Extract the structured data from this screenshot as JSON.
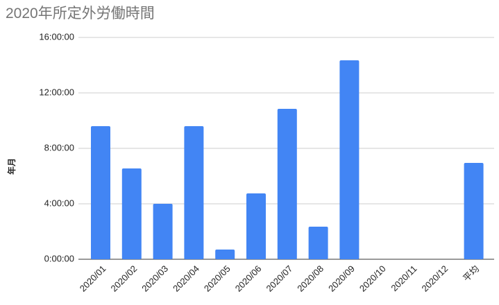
{
  "chart_data": {
    "type": "bar",
    "title": "2020年所定外労働時間",
    "y_label": "年月",
    "categories": [
      "2020/01",
      "2020/02",
      "2020/03",
      "2020/04",
      "2020/05",
      "2020/06",
      "2020/07",
      "2020/08",
      "2020/09",
      "2020/10",
      "2020/11",
      "2020/12",
      "平均"
    ],
    "values": [
      9.6,
      6.55,
      4.0,
      9.6,
      0.7,
      4.75,
      10.85,
      2.35,
      14.35,
      0,
      0,
      0,
      6.95
    ],
    "color": "#4285f4",
    "ylim": [
      0,
      16
    ],
    "yticks": [
      {
        "value": 0,
        "label": "0:00:00"
      },
      {
        "value": 4,
        "label": "4:00:00"
      },
      {
        "value": 8,
        "label": "8:00:00"
      },
      {
        "value": 12,
        "label": "12:00:00"
      },
      {
        "value": 16,
        "label": "16:00:00"
      }
    ],
    "grid": true
  }
}
